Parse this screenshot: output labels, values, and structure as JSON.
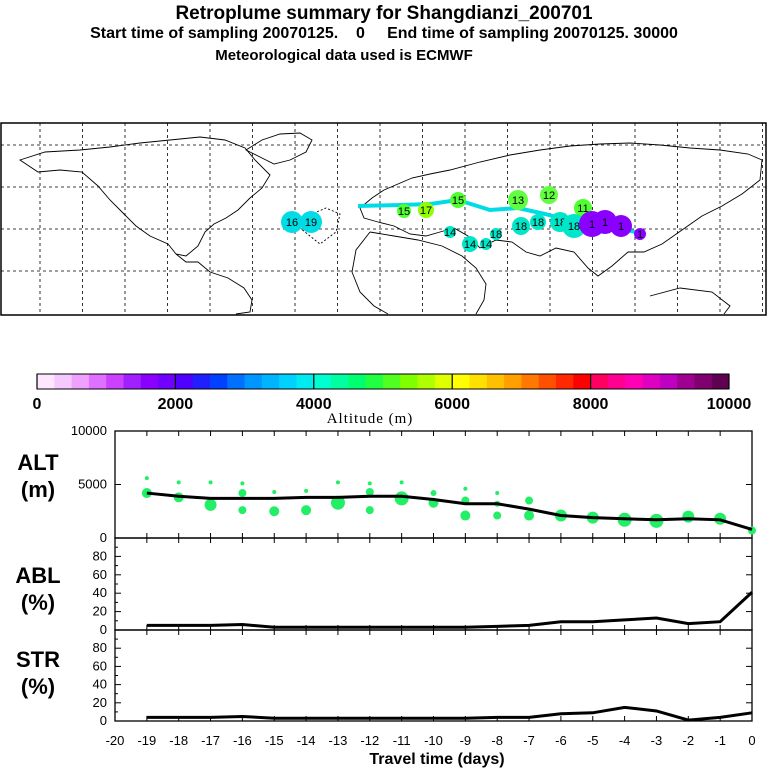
{
  "header": {
    "title": "Retroplume summary for Shangdianzi_200701",
    "subtitle": "Start time of sampling 20070125.    0     End time of sampling 20070125. 30000",
    "met": "Meteorological data used is ECMWF"
  },
  "colorbar": {
    "tick_labels": [
      "0",
      "2000",
      "4000",
      "6000",
      "8000",
      "10000"
    ],
    "label": "Altitude (m)",
    "colors": [
      "#ffe6ff",
      "#f5c8ff",
      "#f0a0ff",
      "#e070ff",
      "#cc40ff",
      "#a020ff",
      "#8a00ff",
      "#7000ff",
      "#5000ff",
      "#2020ff",
      "#0040ff",
      "#0070ff",
      "#0096ff",
      "#00b4ff",
      "#00d2ff",
      "#00ebf0",
      "#00ffd0",
      "#00ffa0",
      "#00ff70",
      "#20ff40",
      "#50ff20",
      "#80ff00",
      "#b0ff00",
      "#e0ff00",
      "#ffff00",
      "#ffe000",
      "#ffc000",
      "#ffa000",
      "#ff7800",
      "#ff5000",
      "#ff2800",
      "#ff0000",
      "#ff0060",
      "#ff0090",
      "#ff00b4",
      "#e000c0",
      "#c000c0",
      "#a00090",
      "#800070",
      "#600050"
    ]
  },
  "map": {
    "labels": [
      {
        "text": "16",
        "col": "#00dce6"
      },
      {
        "text": "19",
        "col": "#00dce6"
      },
      {
        "text": "13",
        "col": "#60ff40"
      },
      {
        "text": "12",
        "col": "#60ff40"
      },
      {
        "text": "11",
        "col": "#50ff30"
      },
      {
        "text": "17",
        "col": "#90ff00"
      },
      {
        "text": "18",
        "col": "#00e6c8"
      },
      {
        "text": "15",
        "col": "#50ff30"
      },
      {
        "text": "14",
        "col": "#00e6c8"
      },
      {
        "text": "1",
        "col": "#8a00ff"
      }
    ]
  },
  "chart_data": [
    {
      "type": "line",
      "panel": "ALT",
      "ylabel": "ALT (m)",
      "x": [
        -19,
        -18,
        -17,
        -16,
        -15,
        -14,
        -13,
        -12,
        -11,
        -10,
        -9,
        -8,
        -7,
        -6,
        -5,
        -4,
        -3,
        -2,
        -1,
        0
      ],
      "values": [
        4200,
        3900,
        3700,
        3700,
        3700,
        3800,
        3800,
        3900,
        3900,
        3600,
        3200,
        3200,
        2700,
        2100,
        1900,
        1800,
        1700,
        1800,
        1700,
        800
      ],
      "yticks": [
        "0",
        "5000",
        "10000"
      ],
      "ylim": [
        0,
        10000
      ],
      "scatter": [
        {
          "x": -19,
          "y": 4200
        },
        {
          "x": -19,
          "y": 5600
        },
        {
          "x": -18,
          "y": 3800
        },
        {
          "x": -18,
          "y": 5200
        },
        {
          "x": -17,
          "y": 3100
        },
        {
          "x": -17,
          "y": 5200
        },
        {
          "x": -16,
          "y": 2600
        },
        {
          "x": -16,
          "y": 4200
        },
        {
          "x": -16,
          "y": 5100
        },
        {
          "x": -15,
          "y": 2500
        },
        {
          "x": -15,
          "y": 4300
        },
        {
          "x": -14,
          "y": 2600
        },
        {
          "x": -14,
          "y": 4400
        },
        {
          "x": -13,
          "y": 3300
        },
        {
          "x": -13,
          "y": 5200
        },
        {
          "x": -12,
          "y": 2600
        },
        {
          "x": -12,
          "y": 4300
        },
        {
          "x": -12,
          "y": 5100
        },
        {
          "x": -11,
          "y": 3700
        },
        {
          "x": -11,
          "y": 5200
        },
        {
          "x": -10,
          "y": 3300
        },
        {
          "x": -10,
          "y": 4200
        },
        {
          "x": -9,
          "y": 2100
        },
        {
          "x": -9,
          "y": 3500
        },
        {
          "x": -9,
          "y": 4600
        },
        {
          "x": -8,
          "y": 2100
        },
        {
          "x": -8,
          "y": 3200
        },
        {
          "x": -8,
          "y": 4200
        },
        {
          "x": -7,
          "y": 2100
        },
        {
          "x": -7,
          "y": 3500
        },
        {
          "x": -6,
          "y": 2100
        },
        {
          "x": -5,
          "y": 1900
        },
        {
          "x": -4,
          "y": 1700
        },
        {
          "x": -3,
          "y": 1600
        },
        {
          "x": -2,
          "y": 2000
        },
        {
          "x": -1,
          "y": 1800
        },
        {
          "x": 0,
          "y": 700
        }
      ]
    },
    {
      "type": "line",
      "panel": "ABL",
      "ylabel": "ABL (%)",
      "x": [
        -19,
        -18,
        -17,
        -16,
        -15,
        -14,
        -13,
        -12,
        -11,
        -10,
        -9,
        -8,
        -7,
        -6,
        -5,
        -4,
        -3,
        -2,
        -1,
        0
      ],
      "values": [
        5,
        5,
        5,
        6,
        3,
        3,
        3,
        3,
        3,
        3,
        3,
        4,
        5,
        9,
        9,
        11,
        13,
        7,
        9,
        41
      ],
      "yticks": [
        "0",
        "20",
        "40",
        "60",
        "80"
      ],
      "ylim": [
        0,
        100
      ]
    },
    {
      "type": "line",
      "panel": "STR",
      "ylabel": "STR (%)",
      "x": [
        -19,
        -18,
        -17,
        -16,
        -15,
        -14,
        -13,
        -12,
        -11,
        -10,
        -9,
        -8,
        -7,
        -6,
        -5,
        -4,
        -3,
        -2,
        -1,
        0
      ],
      "values": [
        4,
        4,
        4,
        5,
        3,
        3,
        3,
        3,
        3,
        3,
        3,
        4,
        4,
        8,
        9,
        15,
        11,
        1,
        4,
        9
      ],
      "yticks": [
        "0",
        "20",
        "40",
        "60",
        "80"
      ],
      "ylim": [
        0,
        100
      ],
      "xlabel": "Travel time (days)",
      "xticks": [
        "-20",
        "-19",
        "-18",
        "-17",
        "-16",
        "-15",
        "-14",
        "-13",
        "-12",
        "-11",
        "-10",
        "-9",
        "-8",
        "-7",
        "-6",
        "-5",
        "-4",
        "-3",
        "-2",
        "-1",
        "0"
      ]
    }
  ]
}
